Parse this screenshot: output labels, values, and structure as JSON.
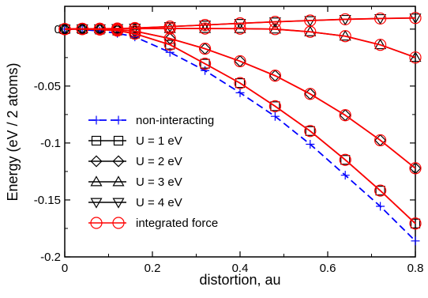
{
  "chart_data": {
    "type": "line",
    "title": "",
    "xlabel": "distortion, au",
    "ylabel": "Energy (eV / 2 atoms)",
    "xlim": [
      0,
      0.8
    ],
    "ylim": [
      -0.2,
      0.02
    ],
    "grid": false,
    "legend_position": "bottom-left",
    "x_ticks": [
      {
        "value": 0,
        "label": "0"
      },
      {
        "value": 0.2,
        "label": "0.2"
      },
      {
        "value": 0.4,
        "label": "0.4"
      },
      {
        "value": 0.6,
        "label": "0.6"
      },
      {
        "value": 0.8,
        "label": "0.8"
      }
    ],
    "y_ticks": [
      {
        "value": 0,
        "label": "0"
      },
      {
        "value": -0.05,
        "label": "-0.05"
      },
      {
        "value": -0.1,
        "label": "-0.1"
      },
      {
        "value": -0.15,
        "label": "-0.15"
      },
      {
        "value": -0.2,
        "label": "-0.2"
      }
    ],
    "x": [
      0,
      0.04,
      0.08,
      0.12,
      0.16,
      0.24,
      0.32,
      0.4,
      0.48,
      0.56,
      0.64,
      0.72,
      0.8
    ],
    "series": [
      {
        "name": "non-interacting",
        "color": "#0000ff",
        "marker": "plus",
        "dash": "dashed",
        "values": [
          0,
          -0.0004,
          -0.0016,
          -0.0037,
          -0.0068,
          -0.0204,
          -0.0364,
          -0.0559,
          -0.0766,
          -0.1011,
          -0.1283,
          -0.1556,
          -0.186
        ]
      },
      {
        "name": "U = 1 eV",
        "color": "#000000",
        "marker": "square",
        "dash": "solid",
        "values": [
          0,
          0.0,
          -0.0004,
          -0.0013,
          -0.004,
          -0.0137,
          -0.0304,
          -0.0474,
          -0.0677,
          -0.0895,
          -0.1148,
          -0.1418,
          -0.1707
        ]
      },
      {
        "name": "U = 2 eV",
        "color": "#000000",
        "marker": "diamond",
        "dash": "solid",
        "values": [
          0,
          0.0002,
          0.0,
          -0.0005,
          -0.0018,
          -0.0083,
          -0.0172,
          -0.0282,
          -0.0409,
          -0.0569,
          -0.0756,
          -0.0976,
          -0.1222
        ]
      },
      {
        "name": "U = 3 eV",
        "color": "#000000",
        "marker": "triangle-up",
        "dash": "solid",
        "values": [
          0,
          0.0002,
          0.0003,
          0.0004,
          0.0004,
          0.0005,
          0.0005,
          0.0004,
          0.0,
          -0.0024,
          -0.0062,
          -0.0138,
          -0.0249
        ]
      },
      {
        "name": "U = 4 eV",
        "color": "#000000",
        "marker": "triangle-down",
        "dash": "solid",
        "values": [
          0,
          0.0002,
          0.0003,
          0.0005,
          0.0009,
          0.0022,
          0.0036,
          0.0051,
          0.0064,
          0.0075,
          0.0086,
          0.0093,
          0.0098
        ]
      },
      {
        "name": "integrated force",
        "color": "#ff0000",
        "marker": "circle",
        "dash": "solid",
        "overlay_of": [
          "U = 1 eV",
          "U = 2 eV",
          "U = 3 eV",
          "U = 4 eV"
        ]
      }
    ]
  }
}
